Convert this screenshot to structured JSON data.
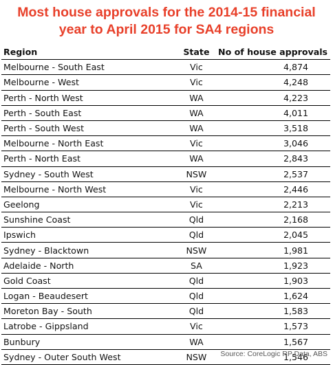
{
  "title_line1": "Most house approvals for the 2014-15 financial",
  "title_line2": "year to April 2015 for SA4 regions",
  "source": "Source: CoreLogic RP Data, ABS",
  "chart_data": {
    "type": "table",
    "title": "Most house approvals for the 2014-15 financial year to April 2015 for SA4 regions",
    "columns": [
      "Region",
      "State",
      "No of house approvals"
    ],
    "rows": [
      [
        "Melbourne - South East",
        "Vic",
        "4,874"
      ],
      [
        "Melbourne - West",
        "Vic",
        "4,248"
      ],
      [
        "Perth - North West",
        "WA",
        "4,223"
      ],
      [
        "Perth - South East",
        "WA",
        "4,011"
      ],
      [
        "Perth - South West",
        "WA",
        "3,518"
      ],
      [
        "Melbourne - North East",
        "Vic",
        "3,046"
      ],
      [
        "Perth - North East",
        "WA",
        "2,843"
      ],
      [
        "Sydney - South West",
        "NSW",
        "2,537"
      ],
      [
        "Melbourne - North West",
        "Vic",
        "2,446"
      ],
      [
        "Geelong",
        "Vic",
        "2,213"
      ],
      [
        "Sunshine Coast",
        "Qld",
        "2,168"
      ],
      [
        "Ipswich",
        "Qld",
        "2,045"
      ],
      [
        "Sydney - Blacktown",
        "NSW",
        "1,981"
      ],
      [
        "Adelaide - North",
        "SA",
        "1,923"
      ],
      [
        "Gold Coast",
        "Qld",
        "1,903"
      ],
      [
        "Logan - Beaudesert",
        "Qld",
        "1,624"
      ],
      [
        "Moreton Bay - South",
        "Qld",
        "1,583"
      ],
      [
        "Latrobe - Gippsland",
        "Vic",
        "1,573"
      ],
      [
        "Bunbury",
        "WA",
        "1,567"
      ],
      [
        "Sydney - Outer South West",
        "NSW",
        "1,546"
      ]
    ]
  }
}
